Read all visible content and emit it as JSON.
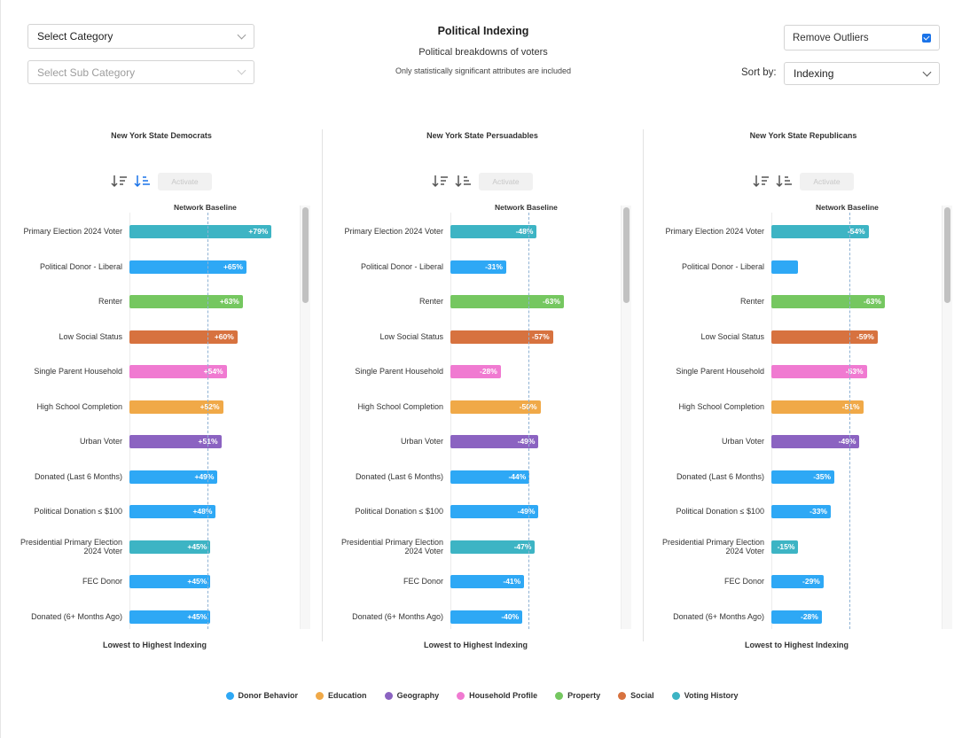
{
  "header": {
    "category_placeholder": "Select Category",
    "subcategory_placeholder": "Select Sub Category",
    "title": "Political Indexing",
    "subtitle": "Political breakdowns of voters",
    "note": "Only statistically significant attributes are included",
    "remove_outliers_label": "Remove Outliers",
    "remove_outliers_checked": true,
    "sort_by_label": "Sort by:",
    "sort_by_value": "Indexing"
  },
  "colors": {
    "Donor Behavior": "#2ea8f5",
    "Education": "#f0a948",
    "Geography": "#8b63c1",
    "Household Profile": "#f07ad1",
    "Property": "#75c760",
    "Social": "#d7723f",
    "Voting History": "#3db4c4"
  },
  "chart_data": [
    {
      "type": "bar",
      "title": "New York State Democrats",
      "baseline_label": "Network Baseline",
      "activate_label": "Activate",
      "footer_label": "Lowest to Highest Indexing",
      "categories": [
        "Primary Election 2024 Voter",
        "Political Donor - Liberal",
        "Renter",
        "Low Social Status",
        "Single Parent Household",
        "High School Completion",
        "Urban Voter",
        "Donated (Last 6 Months)",
        "Political Donation ≤ $100",
        "Presidential Primary Election 2024 Voter",
        "FEC Donor",
        "Donated (6+ Months Ago)"
      ],
      "groups": [
        "Voting History",
        "Donor Behavior",
        "Property",
        "Social",
        "Household Profile",
        "Education",
        "Geography",
        "Donor Behavior",
        "Donor Behavior",
        "Voting History",
        "Donor Behavior",
        "Donor Behavior"
      ],
      "values": [
        79,
        65,
        63,
        60,
        54,
        52,
        51,
        49,
        48,
        45,
        45,
        45
      ],
      "labels": [
        "+79%",
        "+65%",
        "+63%",
        "+60%",
        "+54%",
        "+52%",
        "+51%",
        "+49%",
        "+48%",
        "+45%",
        "+45%",
        "+45%"
      ]
    },
    {
      "type": "bar",
      "title": "New York State Persuadables",
      "baseline_label": "Network Baseline",
      "activate_label": "Activate",
      "footer_label": "Lowest to Highest Indexing",
      "categories": [
        "Primary Election 2024 Voter",
        "Political Donor - Liberal",
        "Renter",
        "Low Social Status",
        "Single Parent Household",
        "High School Completion",
        "Urban Voter",
        "Donated (Last 6 Months)",
        "Political Donation ≤ $100",
        "Presidential Primary Election 2024 Voter",
        "FEC Donor",
        "Donated (6+ Months Ago)"
      ],
      "groups": [
        "Voting History",
        "Donor Behavior",
        "Property",
        "Social",
        "Household Profile",
        "Education",
        "Geography",
        "Donor Behavior",
        "Donor Behavior",
        "Voting History",
        "Donor Behavior",
        "Donor Behavior"
      ],
      "values": [
        -48,
        -31,
        -63,
        -57,
        -28,
        -50,
        -49,
        -44,
        -49,
        -47,
        -41,
        -40
      ],
      "labels": [
        "-48%",
        "-31%",
        "-63%",
        "-57%",
        "-28%",
        "-50%",
        "-49%",
        "-44%",
        "-49%",
        "-47%",
        "-41%",
        "-40%"
      ]
    },
    {
      "type": "bar",
      "title": "New York State Republicans",
      "baseline_label": "Network Baseline",
      "activate_label": "Activate",
      "footer_label": "Lowest to Highest Indexing",
      "categories": [
        "Primary Election 2024 Voter",
        "Political Donor - Liberal",
        "Renter",
        "Low Social Status",
        "Single Parent Household",
        "High School Completion",
        "Urban Voter",
        "Donated (Last 6 Months)",
        "Political Donation ≤ $100",
        "Presidential Primary Election 2024 Voter",
        "FEC Donor",
        "Donated (6+ Months Ago)"
      ],
      "groups": [
        "Voting History",
        "Donor Behavior",
        "Property",
        "Social",
        "Household Profile",
        "Education",
        "Geography",
        "Donor Behavior",
        "Donor Behavior",
        "Voting History",
        "Donor Behavior",
        "Donor Behavior"
      ],
      "values": [
        -54,
        null,
        -63,
        -59,
        -53,
        -51,
        -49,
        -35,
        -33,
        -15,
        -29,
        -28
      ],
      "labels": [
        "-54%",
        "",
        "-63%",
        "-59%",
        "-53%",
        "-51%",
        "-49%",
        "-35%",
        "-33%",
        "-15%",
        "-29%",
        "-28%"
      ]
    }
  ],
  "legend": [
    "Donor Behavior",
    "Education",
    "Geography",
    "Household Profile",
    "Property",
    "Social",
    "Voting History"
  ]
}
